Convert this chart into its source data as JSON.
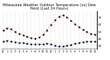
{
  "title": "Milwaukee Weather Outdoor Temperature (vs) Dew Point (Last 24 Hours)",
  "temp_values": [
    52,
    55,
    54,
    50,
    47,
    45,
    43,
    41,
    40,
    42,
    46,
    52,
    60,
    67,
    72,
    74,
    71,
    66,
    61,
    57,
    53,
    50,
    47,
    46
  ],
  "dew_values": [
    36,
    37,
    36,
    35,
    34,
    34,
    33,
    32,
    32,
    32,
    32,
    33,
    32,
    30,
    29,
    29,
    30,
    31,
    33,
    34,
    35,
    36,
    36,
    36
  ],
  "x_labels": [
    "12",
    "1",
    "2",
    "3",
    "4",
    "5",
    "6",
    "7",
    "8",
    "9",
    "10",
    "11",
    "12",
    "1",
    "2",
    "3",
    "4",
    "5",
    "6",
    "7",
    "8",
    "9",
    "10",
    "11"
  ],
  "ylim": [
    25,
    80
  ],
  "yticks": [
    30,
    40,
    50,
    60,
    70
  ],
  "temp_color": "#cc0000",
  "dew_color": "#0000cc",
  "marker_color": "#000000",
  "bg_color": "#ffffff",
  "grid_color": "#888888",
  "title_fontsize": 3.8,
  "tick_fontsize": 2.8,
  "ylabel_fontsize": 3.0,
  "figwidth": 1.6,
  "figheight": 0.87
}
